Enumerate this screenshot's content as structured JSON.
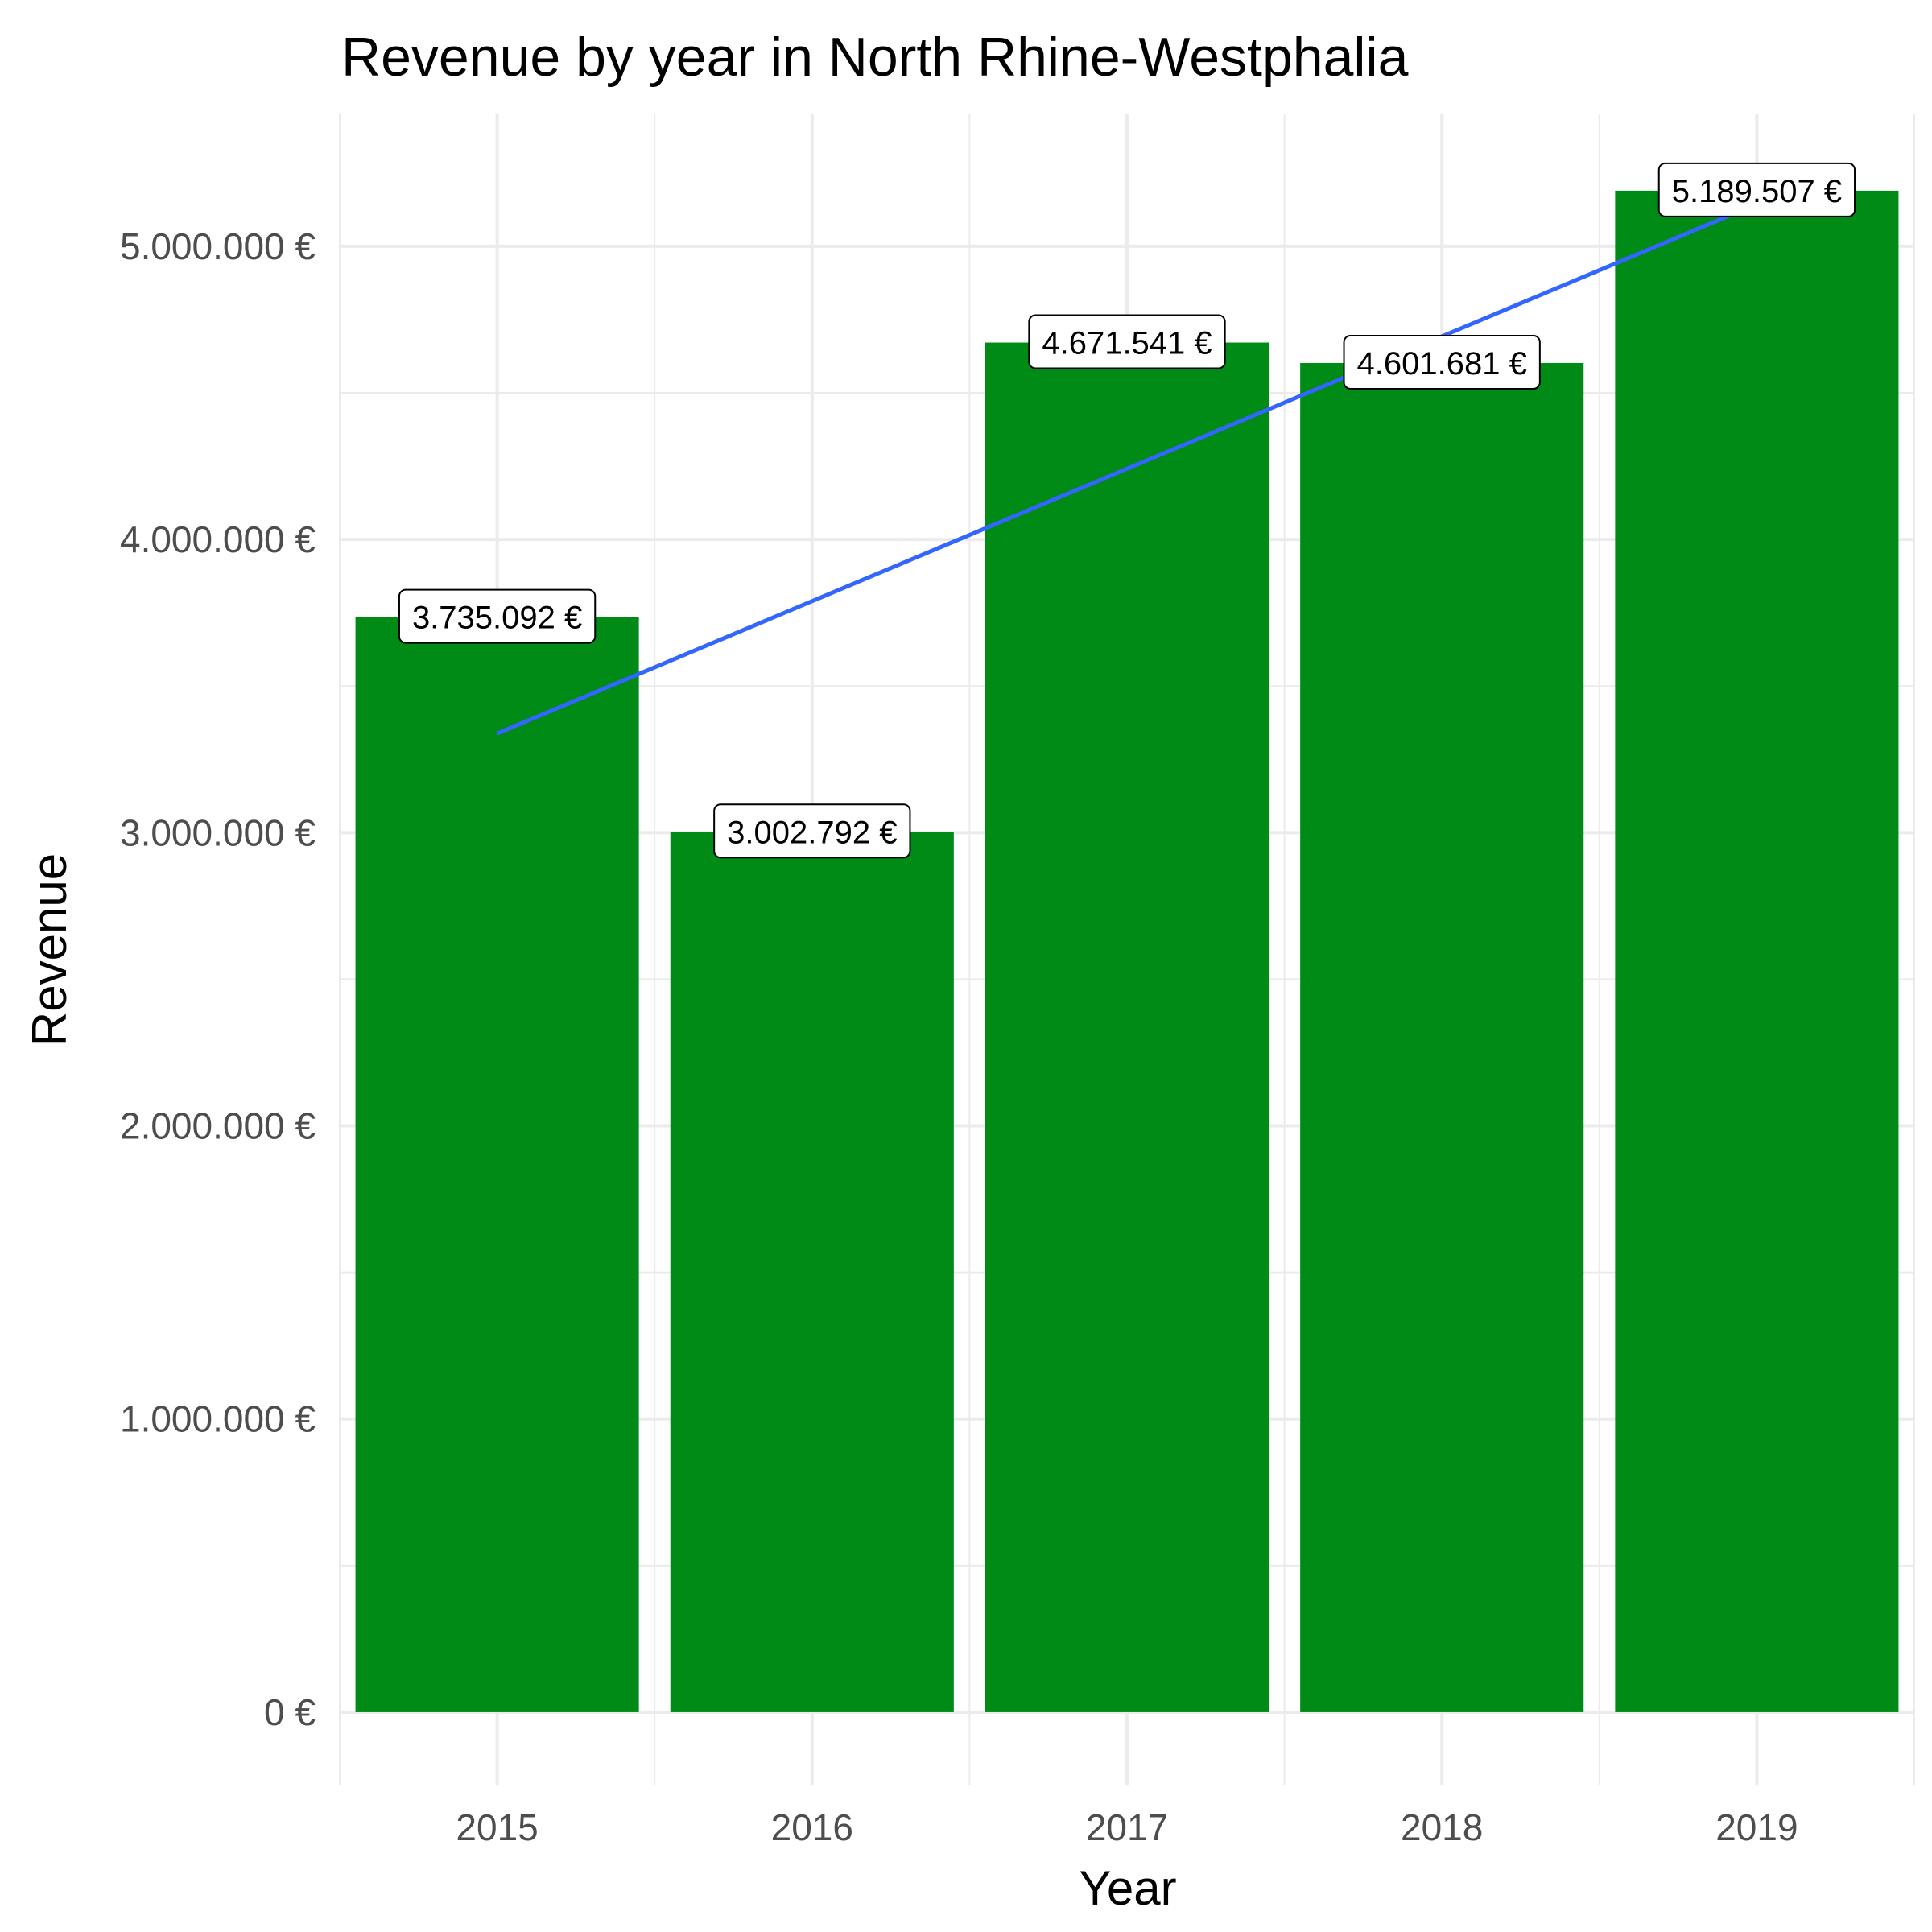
{
  "chart_data": {
    "type": "bar",
    "title": "Revenue by year in North Rhine-Westphalia",
    "xlabel": "Year",
    "ylabel": "Revenue",
    "categories": [
      "2015",
      "2016",
      "2017",
      "2018",
      "2019"
    ],
    "values": [
      3735092,
      3002792,
      4671541,
      4601681,
      5189507
    ],
    "data_labels": [
      "3.735.092 €",
      "3.002.792 €",
      "4.671.541 €",
      "4.601.681 €",
      "5.189.507 €"
    ],
    "ylim": [
      -250000,
      5450000
    ],
    "yticks": [
      0,
      1000000,
      2000000,
      3000000,
      4000000,
      5000000
    ],
    "ytick_labels": [
      "0 €",
      "1.000.000 €",
      "2.000.000 €",
      "3.000.000 €",
      "4.000.000 €",
      "5.000.000 €"
    ],
    "grid": true,
    "bar_color": "#008b17",
    "trend_line": {
      "color": "#3366ff",
      "x": [
        "2015",
        "2019"
      ],
      "y": [
        3338000,
        5144000
      ]
    }
  }
}
